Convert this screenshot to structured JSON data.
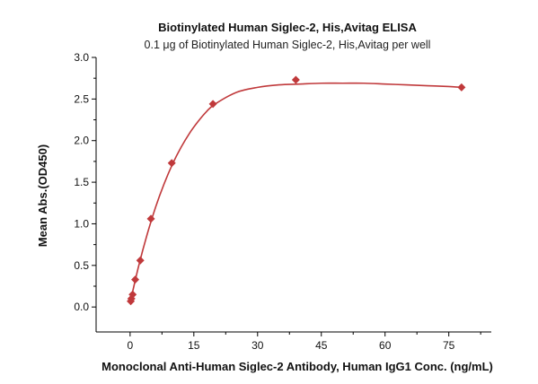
{
  "chart_data": {
    "type": "scatter",
    "title": "Biotinylated Human Siglec-2, His,Avitag ELISA",
    "subtitle": "0.1 μg of Biotinylated Human Siglec-2, His,Avitag per well",
    "xlabel": "Monoclonal Anti-Human Siglec-2 Antibody, Human IgG1 Conc. (ng/mL)",
    "ylabel": "Mean Abs.(OD450)",
    "xlim": [
      -8,
      85
    ],
    "ylim": [
      -0.3,
      3.0
    ],
    "xticks": [
      0,
      15,
      30,
      45,
      60,
      75
    ],
    "yticks": [
      0.0,
      0.5,
      1.0,
      1.5,
      2.0,
      2.5,
      3.0
    ],
    "xtick_labels": [
      "0",
      "15",
      "30",
      "45",
      "60",
      "75"
    ],
    "ytick_labels": [
      "0.0",
      "0.5",
      "1.0",
      "1.5",
      "2.0",
      "2.5",
      "3.0"
    ],
    "grid": false,
    "series": [
      {
        "x": [
          0.15,
          0.3,
          0.6,
          1.2,
          2.4,
          4.9,
          9.8,
          19.5,
          39,
          78
        ],
        "y": [
          0.07,
          0.1,
          0.15,
          0.33,
          0.56,
          1.06,
          1.73,
          2.44,
          2.73,
          2.64
        ],
        "marker": "diamond",
        "color": "#c0393b"
      }
    ],
    "fit_curve": {
      "color": "#c0393b",
      "x": [
        0,
        2,
        4,
        6,
        8,
        10,
        12,
        14,
        16,
        18,
        20,
        25,
        30,
        35,
        40,
        45,
        50,
        55,
        60,
        65,
        70,
        75,
        78
      ],
      "y": [
        0.05,
        0.49,
        0.87,
        1.2,
        1.48,
        1.72,
        1.92,
        2.09,
        2.23,
        2.35,
        2.44,
        2.58,
        2.64,
        2.67,
        2.68,
        2.69,
        2.69,
        2.69,
        2.68,
        2.67,
        2.66,
        2.65,
        2.64
      ]
    }
  }
}
